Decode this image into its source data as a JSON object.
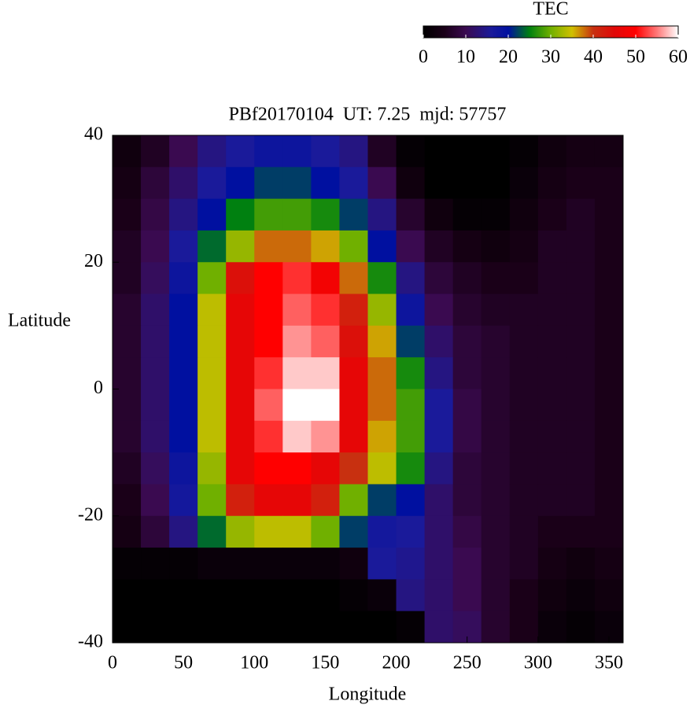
{
  "chart_data": {
    "type": "heatmap",
    "title": "PBf20170104  UT: 7.25  mjd: 57757",
    "xlabel": "Longitude",
    "ylabel": "Latitude",
    "x": [
      10,
      30,
      50,
      70,
      90,
      110,
      130,
      150,
      170,
      190,
      210,
      230,
      250,
      270,
      290,
      310,
      330,
      350
    ],
    "y": [
      37.5,
      32.5,
      27.5,
      22.5,
      17.5,
      12.5,
      7.5,
      2.5,
      -2.5,
      -7.5,
      -12.5,
      -17.5,
      -22.5,
      -27.5,
      -32.5,
      -37.5
    ],
    "values": [
      [
        3,
        6,
        10,
        14,
        16,
        18,
        18,
        16,
        14,
        6,
        1,
        0,
        0,
        0,
        1,
        3,
        4,
        4
      ],
      [
        4,
        8,
        12,
        16,
        20,
        22,
        22,
        20,
        16,
        10,
        3,
        0,
        0,
        0,
        2,
        4,
        5,
        5
      ],
      [
        5,
        9,
        14,
        20,
        25,
        28,
        28,
        26,
        22,
        14,
        7,
        3,
        1,
        1,
        3,
        5,
        6,
        5
      ],
      [
        6,
        10,
        16,
        24,
        32,
        38,
        38,
        36,
        30,
        20,
        10,
        6,
        4,
        3,
        4,
        6,
        6,
        5
      ],
      [
        6,
        11,
        18,
        30,
        44,
        50,
        52,
        48,
        38,
        26,
        14,
        8,
        6,
        5,
        5,
        6,
        6,
        5
      ],
      [
        7,
        12,
        20,
        34,
        46,
        50,
        54,
        52,
        42,
        32,
        18,
        10,
        7,
        6,
        6,
        6,
        6,
        5
      ],
      [
        7,
        12,
        20,
        34,
        46,
        50,
        56,
        54,
        44,
        36,
        22,
        12,
        8,
        7,
        6,
        6,
        6,
        5
      ],
      [
        7,
        12,
        20,
        34,
        46,
        52,
        58,
        58,
        46,
        38,
        26,
        14,
        8,
        7,
        6,
        6,
        6,
        5
      ],
      [
        7,
        12,
        20,
        34,
        46,
        54,
        60,
        60,
        46,
        38,
        28,
        16,
        9,
        7,
        6,
        6,
        6,
        5
      ],
      [
        7,
        12,
        20,
        34,
        46,
        52,
        58,
        56,
        46,
        36,
        28,
        16,
        9,
        7,
        6,
        6,
        6,
        5
      ],
      [
        6,
        11,
        18,
        32,
        46,
        50,
        50,
        46,
        40,
        34,
        26,
        14,
        8,
        7,
        6,
        6,
        6,
        5
      ],
      [
        5,
        10,
        17,
        30,
        42,
        46,
        46,
        42,
        30,
        22,
        20,
        12,
        8,
        7,
        6,
        6,
        6,
        5
      ],
      [
        4,
        8,
        14,
        24,
        32,
        34,
        34,
        30,
        22,
        17,
        16,
        12,
        9,
        7,
        6,
        5,
        5,
        5
      ],
      [
        1,
        1,
        1,
        2,
        2,
        2,
        2,
        2,
        3,
        16,
        15,
        12,
        10,
        7,
        6,
        4,
        3,
        4
      ],
      [
        0,
        0,
        0,
        0,
        0,
        0,
        0,
        0,
        1,
        2,
        14,
        12,
        10,
        7,
        5,
        3,
        2,
        3
      ],
      [
        0,
        0,
        0,
        0,
        0,
        0,
        0,
        0,
        0,
        0,
        1,
        12,
        11,
        7,
        5,
        2,
        1,
        2
      ]
    ],
    "xlim": [
      0,
      360
    ],
    "ylim": [
      -40,
      40
    ],
    "xticks": [
      0,
      50,
      100,
      150,
      200,
      250,
      300,
      350
    ],
    "yticks": [
      -40,
      -20,
      0,
      20,
      40
    ],
    "colorbar": {
      "label": "TEC",
      "lim": [
        0,
        60
      ],
      "ticks": [
        0,
        10,
        20,
        30,
        40,
        50,
        60
      ],
      "stops": [
        {
          "value": 0,
          "color": "#000000"
        },
        {
          "value": 5,
          "color": "#1a0018"
        },
        {
          "value": 10,
          "color": "#3a0a50"
        },
        {
          "value": 16,
          "color": "#1a1a9a"
        },
        {
          "value": 20,
          "color": "#0010a0"
        },
        {
          "value": 25,
          "color": "#008010"
        },
        {
          "value": 30,
          "color": "#70b000"
        },
        {
          "value": 35,
          "color": "#d0c000"
        },
        {
          "value": 40,
          "color": "#c83010"
        },
        {
          "value": 45,
          "color": "#e00808"
        },
        {
          "value": 50,
          "color": "#ff0000"
        },
        {
          "value": 55,
          "color": "#ff7878"
        },
        {
          "value": 60,
          "color": "#ffffff"
        }
      ]
    }
  }
}
